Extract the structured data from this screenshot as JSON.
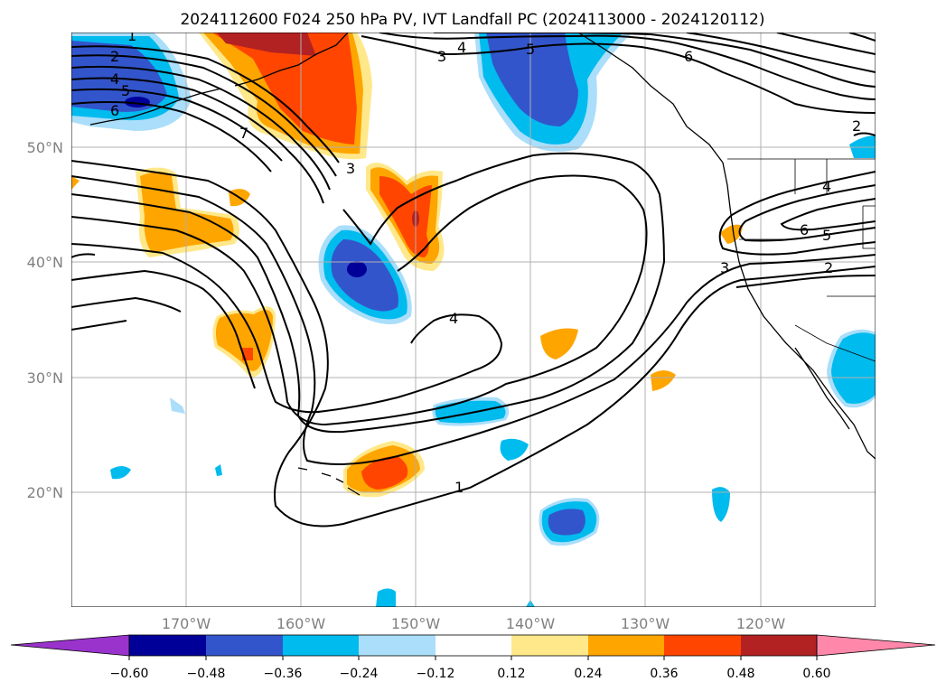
{
  "title": "2024112600 F024 250 hPa PV, IVT Landfall PC (2024113000 - 2024120112)",
  "map": {
    "lon_range": [
      -180,
      -110
    ],
    "lat_range": [
      10,
      60
    ],
    "lon_ticks": [
      {
        "value": -170,
        "label": "170°W"
      },
      {
        "value": -160,
        "label": "160°W"
      },
      {
        "value": -150,
        "label": "150°W"
      },
      {
        "value": -140,
        "label": "140°W"
      },
      {
        "value": -130,
        "label": "130°W"
      },
      {
        "value": -120,
        "label": "120°W"
      }
    ],
    "lat_ticks": [
      {
        "value": 20,
        "label": "20°N"
      },
      {
        "value": 30,
        "label": "30°N"
      },
      {
        "value": 40,
        "label": "40°N"
      },
      {
        "value": 50,
        "label": "50°N"
      }
    ],
    "grid": true,
    "projection": "equirectangular",
    "contour_labels": [
      "1",
      "2",
      "3",
      "4",
      "5",
      "6",
      "7",
      "2",
      "3",
      "4",
      "5",
      "6",
      "1",
      "2",
      "3",
      "4",
      "5",
      "6",
      "4"
    ]
  },
  "colorbar": {
    "orientation": "horizontal",
    "extend": "both",
    "colors": [
      "#9933cc",
      "#000099",
      "#3355cc",
      "#00bbee",
      "#aadefa",
      "#ffffff",
      "#ffe88a",
      "#ffa500",
      "#ff4500",
      "#b22222",
      "#ff88aa"
    ],
    "labels": [
      "−0.60",
      "−0.48",
      "−0.36",
      "−0.24",
      "−0.12",
      "0.12",
      "0.24",
      "0.36",
      "0.48",
      "0.60"
    ]
  }
}
